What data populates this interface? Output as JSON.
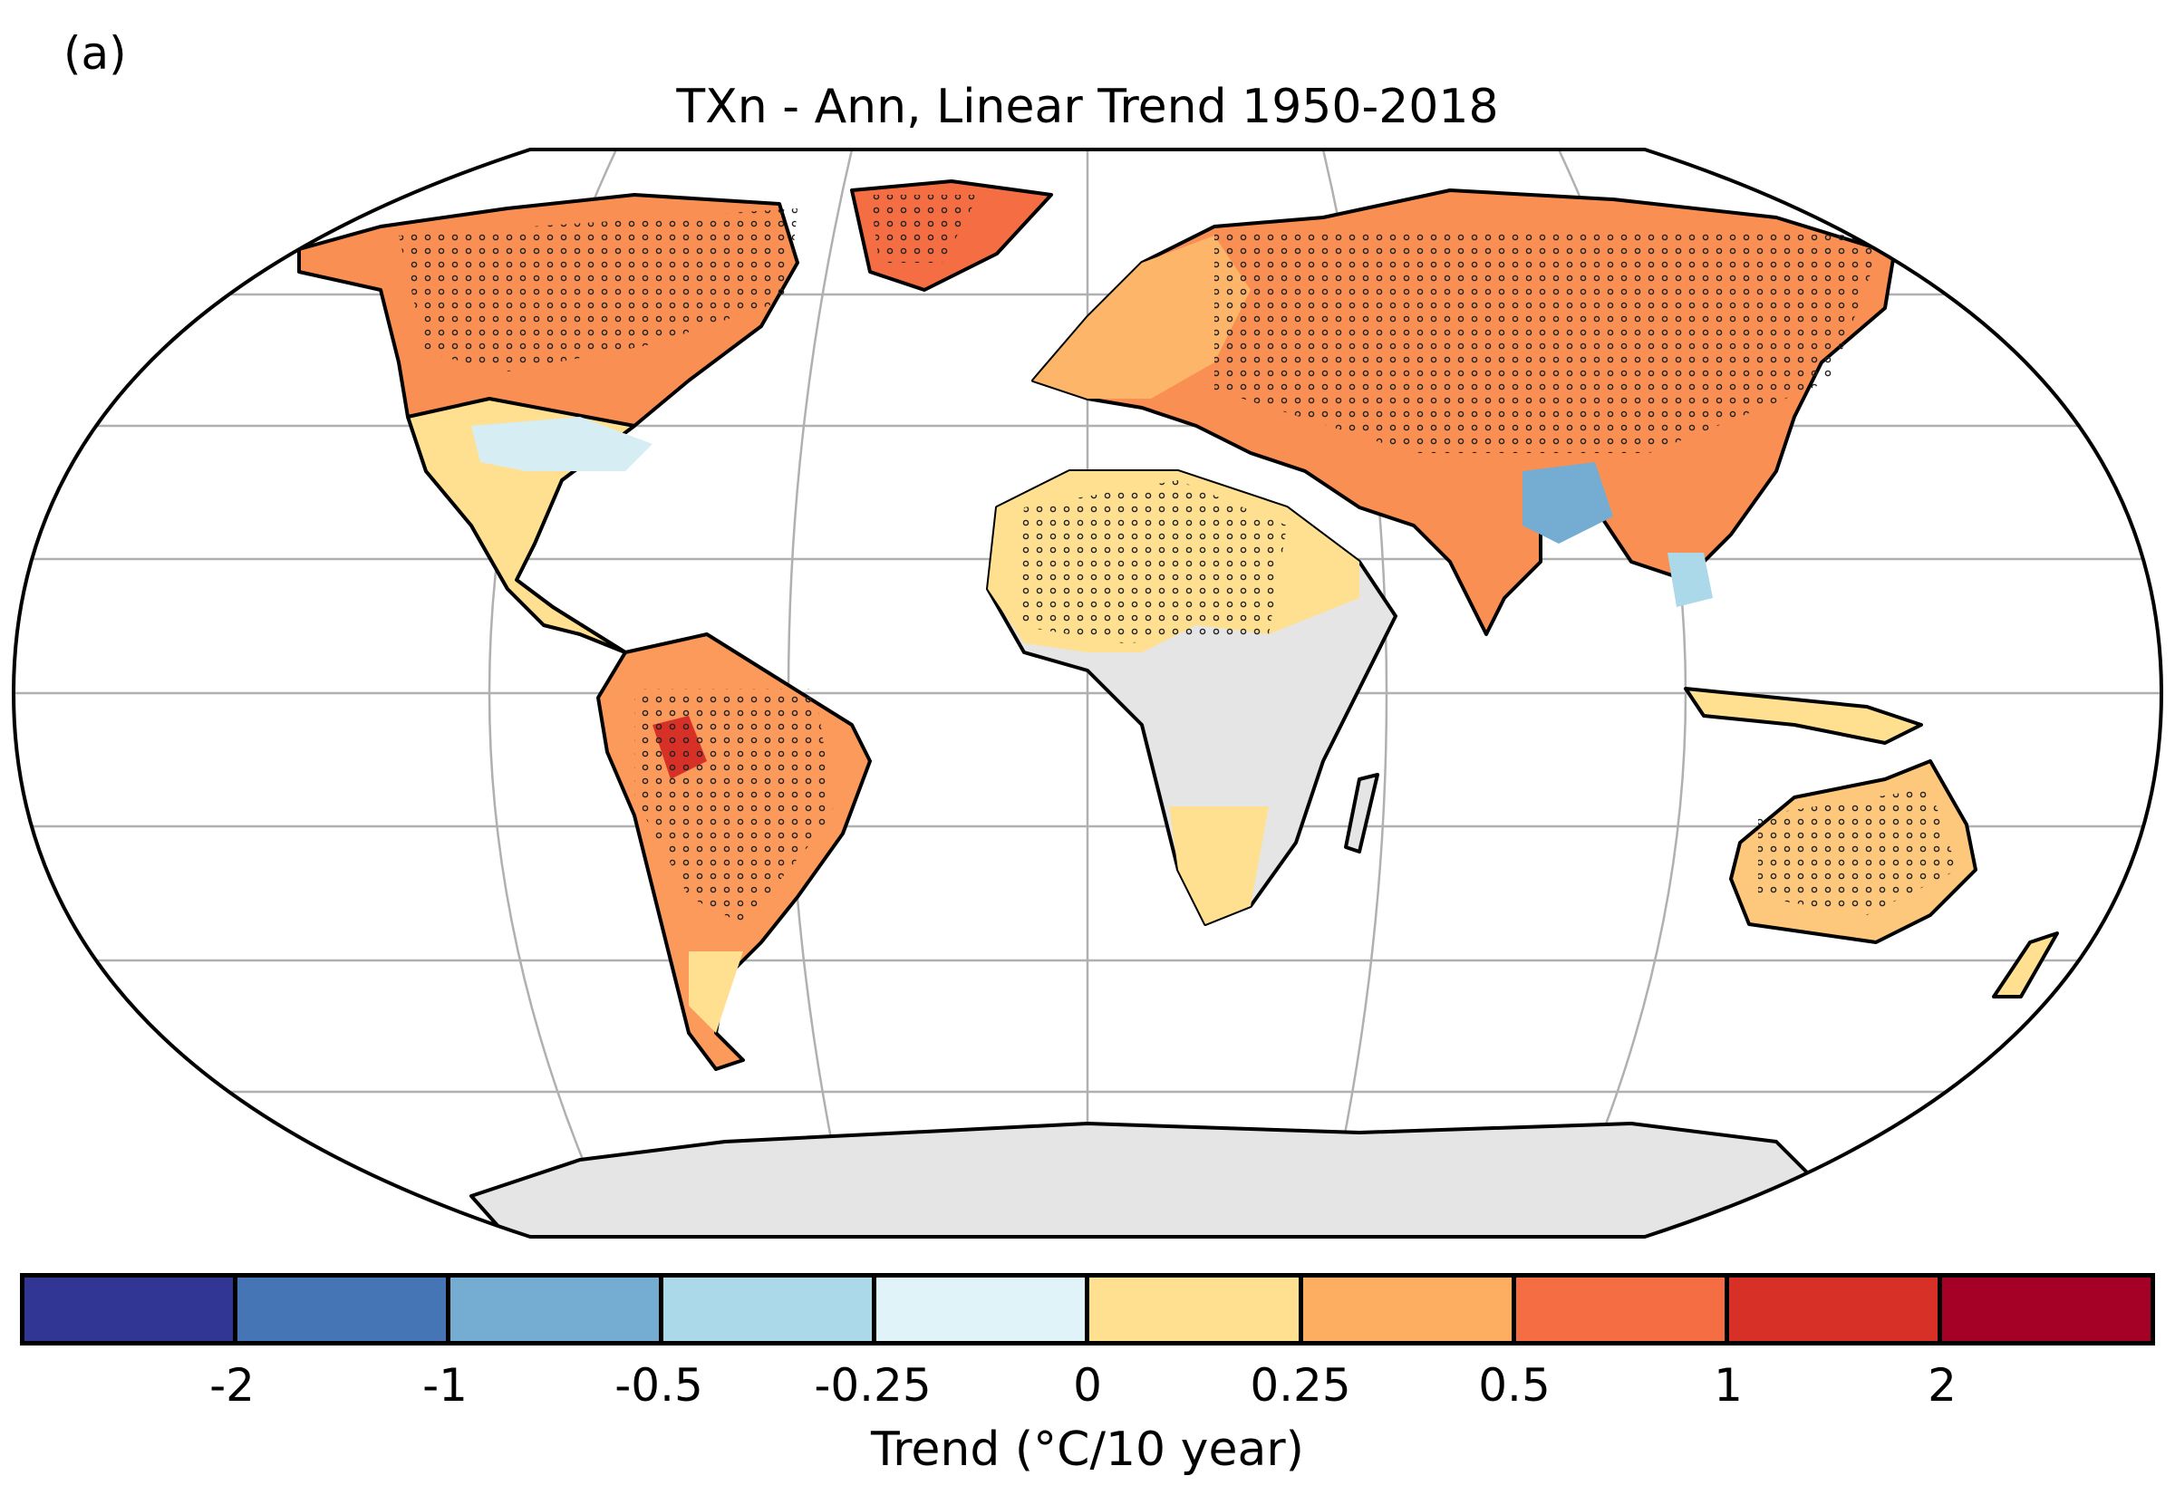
{
  "panel_label": "(a)",
  "title": "TXn - Ann, Linear Trend 1950-2018",
  "colorbar": {
    "label": "Trend (°C/10 year)",
    "colors": [
      "#313695",
      "#4575b4",
      "#74add1",
      "#abd9e9",
      "#e0f3f8",
      "#fee090",
      "#fdae61",
      "#f46d43",
      "#d73027",
      "#a50026"
    ],
    "tick_labels": [
      "-2",
      "-1",
      "-0.5",
      "-0.25",
      "0",
      "0.25",
      "0.5",
      "1",
      "2"
    ]
  },
  "map": {
    "projection": "Robinson",
    "no_data_color": "#e5e5e5",
    "stippling": "significant trend"
  }
}
